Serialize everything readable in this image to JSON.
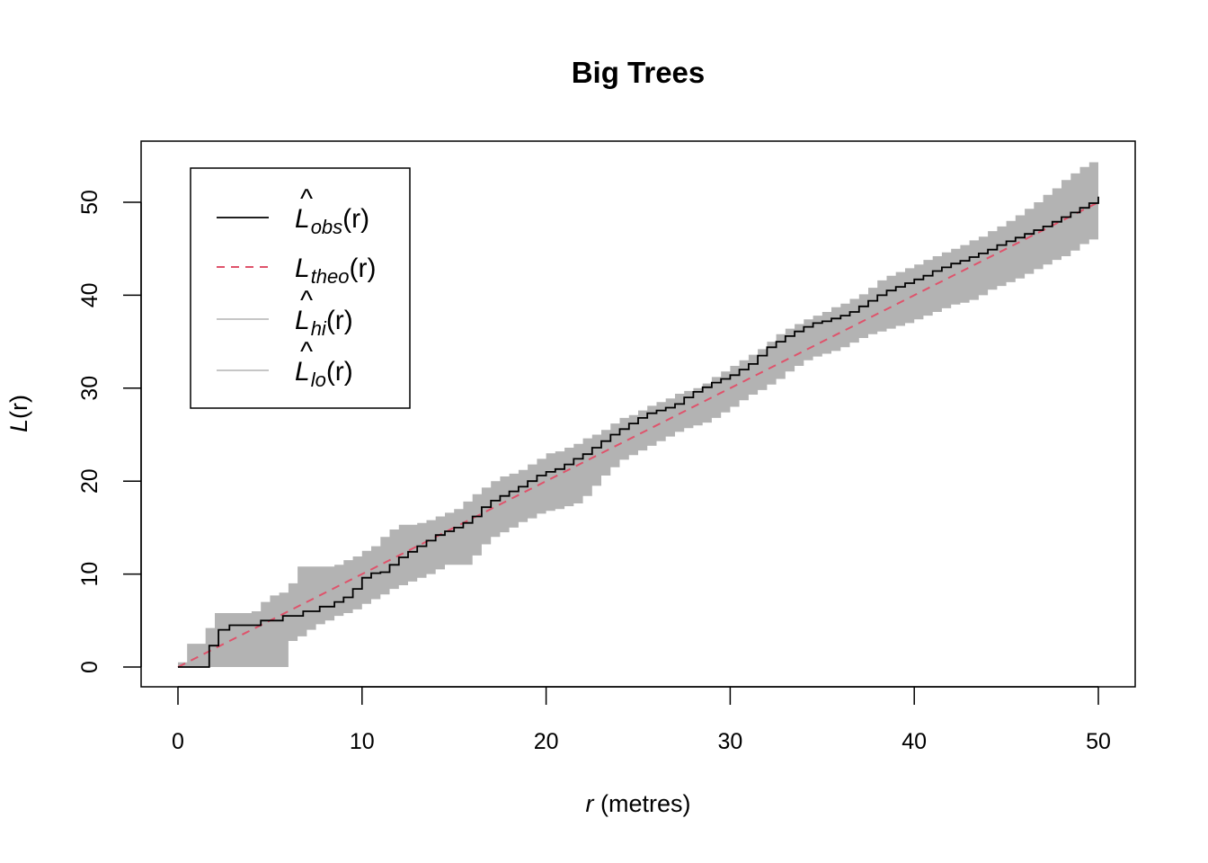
{
  "chart_data": {
    "type": "line",
    "title": "Big Trees",
    "xlabel": {
      "var": "r",
      "rest": " (metres)"
    },
    "ylabel": {
      "var": "L",
      "rest": "(r)"
    },
    "xlim": [
      0,
      50
    ],
    "ylim": [
      0,
      53
    ],
    "x_ticks": [
      0,
      10,
      20,
      30,
      40,
      50
    ],
    "y_ticks": [
      0,
      10,
      20,
      30,
      40,
      50
    ],
    "grid": false,
    "legend": {
      "placement": "top-left",
      "entries": [
        {
          "key": "obs",
          "hat": true,
          "base": "L",
          "sub": "obs",
          "arg": "(r)",
          "color": "#000000",
          "dash": "solid"
        },
        {
          "key": "theo",
          "hat": false,
          "base": "L",
          "sub": "theo",
          "arg": "(r)",
          "color": "#DF536B",
          "dash": "dashed"
        },
        {
          "key": "hi",
          "hat": true,
          "base": "L",
          "sub": "hi",
          "arg": "(r)",
          "color": "#BEBEBE",
          "dash": "solid"
        },
        {
          "key": "lo",
          "hat": true,
          "base": "L",
          "sub": "lo",
          "arg": "(r)",
          "color": "#BEBEBE",
          "dash": "solid"
        }
      ]
    },
    "colors": {
      "obs": "#000000",
      "theo": "#DF536B",
      "envelope": "#B3B3B3"
    },
    "series": [
      {
        "name": "obs",
        "x": [
          0,
          1.6,
          1.7,
          2.0,
          2.2,
          2.3,
          2.8,
          3.0,
          4.4,
          4.5,
          5.6,
          5.7,
          6.7,
          6.8,
          7.6,
          7.7,
          8.4,
          8.5,
          9.0,
          9.5,
          10.0,
          10.5,
          11.0,
          11.5,
          12.0,
          12.5,
          13.0,
          13.5,
          14.0,
          14.5,
          15.0,
          15.5,
          16.0,
          16.5,
          17.0,
          17.5,
          18.0,
          18.5,
          19.0,
          19.5,
          20.0,
          20.5,
          21.0,
          21.5,
          22.0,
          22.5,
          23.0,
          23.5,
          24.0,
          24.5,
          25.0,
          25.5,
          26.0,
          26.5,
          27.0,
          27.5,
          28.0,
          28.5,
          29.0,
          29.5,
          30.0,
          30.5,
          31.0,
          31.5,
          32.0,
          32.5,
          33.0,
          33.5,
          34.0,
          34.5,
          35.0,
          35.5,
          36.0,
          36.5,
          37.0,
          37.5,
          38.0,
          38.5,
          39.0,
          39.5,
          40.0,
          40.5,
          41.0,
          41.5,
          42.0,
          42.5,
          43.0,
          43.5,
          44.0,
          44.5,
          45.0,
          45.5,
          46.0,
          46.5,
          47.0,
          47.5,
          48.0,
          48.5,
          49.0,
          49.5,
          50.0
        ],
        "values": [
          0,
          0,
          2.3,
          2.3,
          4.0,
          4.0,
          4.5,
          4.5,
          4.5,
          5.0,
          5.0,
          5.5,
          5.5,
          6.0,
          6.0,
          6.5,
          6.5,
          7.0,
          7.5,
          8.4,
          9.6,
          10.1,
          10.2,
          11.0,
          11.8,
          12.4,
          13.0,
          13.6,
          14.2,
          14.6,
          15.0,
          15.5,
          16.2,
          17.2,
          17.9,
          18.4,
          18.9,
          19.4,
          20.0,
          20.6,
          21.0,
          21.3,
          21.8,
          22.4,
          22.9,
          23.6,
          24.3,
          25.0,
          25.6,
          26.2,
          26.8,
          27.3,
          27.6,
          27.9,
          28.3,
          29.0,
          29.6,
          30.1,
          30.6,
          31.0,
          31.4,
          32.0,
          32.6,
          33.5,
          34.4,
          35.0,
          35.6,
          36.1,
          36.6,
          37.0,
          37.2,
          37.5,
          37.8,
          38.2,
          38.8,
          39.4,
          40.0,
          40.5,
          40.9,
          41.3,
          41.7,
          42.1,
          42.6,
          43.0,
          43.4,
          43.7,
          44.1,
          44.5,
          44.9,
          45.4,
          45.8,
          46.2,
          46.6,
          47.0,
          47.4,
          47.9,
          48.4,
          48.9,
          49.4,
          49.9,
          50.6
        ]
      },
      {
        "name": "theo",
        "x": [
          0,
          50
        ],
        "values": [
          0,
          50
        ]
      },
      {
        "name": "hi",
        "x": [
          0,
          0.5,
          1.0,
          1.5,
          2.0,
          2.5,
          3.0,
          3.5,
          4.0,
          4.5,
          5.0,
          5.5,
          6.0,
          6.5,
          7.0,
          7.5,
          8.0,
          8.5,
          9.0,
          9.5,
          10.0,
          10.5,
          11.0,
          11.5,
          12.0,
          12.5,
          13.0,
          13.5,
          14.0,
          14.5,
          15.0,
          15.5,
          16.0,
          16.5,
          17.0,
          17.5,
          18.0,
          18.5,
          19.0,
          19.5,
          20.0,
          20.5,
          21.0,
          21.5,
          22.0,
          22.5,
          23.0,
          23.5,
          24.0,
          24.5,
          25.0,
          25.5,
          26.0,
          26.5,
          27.0,
          27.5,
          28.0,
          28.5,
          29.0,
          29.5,
          30.0,
          30.5,
          31.0,
          31.5,
          32.0,
          32.5,
          33.0,
          33.5,
          34.0,
          34.5,
          35.0,
          35.5,
          36.0,
          36.5,
          37.0,
          37.5,
          38.0,
          38.5,
          39.0,
          39.5,
          40.0,
          40.5,
          41.0,
          41.5,
          42.0,
          42.5,
          43.0,
          43.5,
          44.0,
          44.5,
          45.0,
          45.5,
          46.0,
          46.5,
          47.0,
          47.5,
          48.0,
          48.5,
          49.0,
          49.5,
          50.0
        ],
        "values": [
          0.5,
          2.5,
          2.5,
          4.2,
          5.8,
          5.8,
          5.8,
          5.8,
          6.0,
          7.0,
          7.7,
          8.0,
          9.0,
          10.8,
          10.8,
          10.8,
          10.8,
          11.0,
          11.5,
          11.9,
          12.5,
          13.0,
          14.0,
          14.8,
          15.3,
          15.3,
          15.5,
          15.8,
          16.2,
          16.6,
          17.0,
          17.8,
          18.6,
          19.3,
          20.0,
          20.5,
          20.8,
          21.2,
          21.8,
          22.4,
          23.0,
          23.2,
          23.6,
          24.0,
          24.6,
          25.0,
          25.5,
          26.2,
          26.8,
          27.1,
          27.6,
          28.1,
          28.5,
          28.9,
          29.4,
          29.7,
          30.0,
          30.5,
          31.2,
          31.8,
          32.4,
          33.0,
          33.6,
          34.2,
          35.0,
          35.8,
          36.4,
          36.9,
          37.4,
          37.8,
          38.2,
          38.7,
          39.1,
          39.6,
          40.1,
          40.8,
          41.6,
          42.1,
          42.5,
          42.9,
          43.3,
          43.8,
          44.2,
          44.6,
          45.0,
          45.4,
          45.9,
          46.3,
          46.9,
          47.4,
          48.0,
          48.6,
          49.3,
          50.0,
          50.8,
          51.5,
          52.4,
          53.1,
          53.8,
          54.3,
          54.5
        ]
      },
      {
        "name": "lo",
        "x": [
          0,
          0.5,
          1.0,
          1.5,
          2.0,
          2.5,
          3.0,
          3.5,
          4.0,
          4.5,
          5.0,
          5.5,
          6.0,
          6.5,
          7.0,
          7.5,
          8.0,
          8.5,
          9.0,
          9.5,
          10.0,
          10.5,
          11.0,
          11.5,
          12.0,
          12.5,
          13.0,
          13.5,
          14.0,
          14.5,
          15.0,
          15.5,
          16.0,
          16.5,
          17.0,
          17.5,
          18.0,
          18.5,
          19.0,
          19.5,
          20.0,
          20.5,
          21.0,
          21.5,
          22.0,
          22.5,
          23.0,
          23.5,
          24.0,
          24.5,
          25.0,
          25.5,
          26.0,
          26.5,
          27.0,
          27.5,
          28.0,
          28.5,
          29.0,
          29.5,
          30.0,
          30.5,
          31.0,
          31.5,
          32.0,
          32.5,
          33.0,
          33.5,
          34.0,
          34.5,
          35.0,
          35.5,
          36.0,
          36.5,
          37.0,
          37.5,
          38.0,
          38.5,
          39.0,
          39.5,
          40.0,
          40.5,
          41.0,
          41.5,
          42.0,
          42.5,
          43.0,
          43.5,
          44.0,
          44.5,
          45.0,
          45.5,
          46.0,
          46.5,
          47.0,
          47.5,
          48.0,
          48.5,
          49.0,
          49.5,
          50.0
        ],
        "values": [
          0,
          0,
          0,
          0,
          0,
          0,
          0,
          0,
          0,
          0,
          0,
          0,
          2.8,
          3.3,
          4.0,
          4.6,
          5.0,
          5.5,
          5.8,
          6.2,
          6.8,
          7.3,
          7.8,
          8.4,
          8.8,
          9.2,
          9.6,
          10.0,
          10.5,
          11.0,
          11.0,
          11.0,
          12.0,
          13.2,
          14.0,
          14.5,
          15.0,
          15.6,
          16.0,
          16.5,
          16.8,
          17.0,
          17.3,
          17.6,
          18.4,
          19.5,
          20.6,
          21.5,
          22.3,
          22.8,
          23.3,
          23.8,
          24.3,
          24.8,
          25.3,
          25.7,
          26.0,
          26.3,
          26.8,
          27.4,
          28.0,
          28.7,
          29.3,
          29.8,
          30.4,
          31.0,
          31.8,
          32.4,
          33.0,
          33.4,
          33.7,
          34.0,
          34.4,
          34.9,
          35.4,
          35.8,
          36.1,
          36.4,
          36.7,
          37.0,
          37.4,
          37.8,
          38.2,
          38.6,
          39.0,
          39.2,
          39.5,
          40.0,
          40.6,
          41.0,
          41.4,
          41.8,
          42.3,
          42.8,
          43.3,
          43.8,
          44.2,
          44.8,
          45.5,
          46.0,
          46.4
        ]
      }
    ]
  }
}
